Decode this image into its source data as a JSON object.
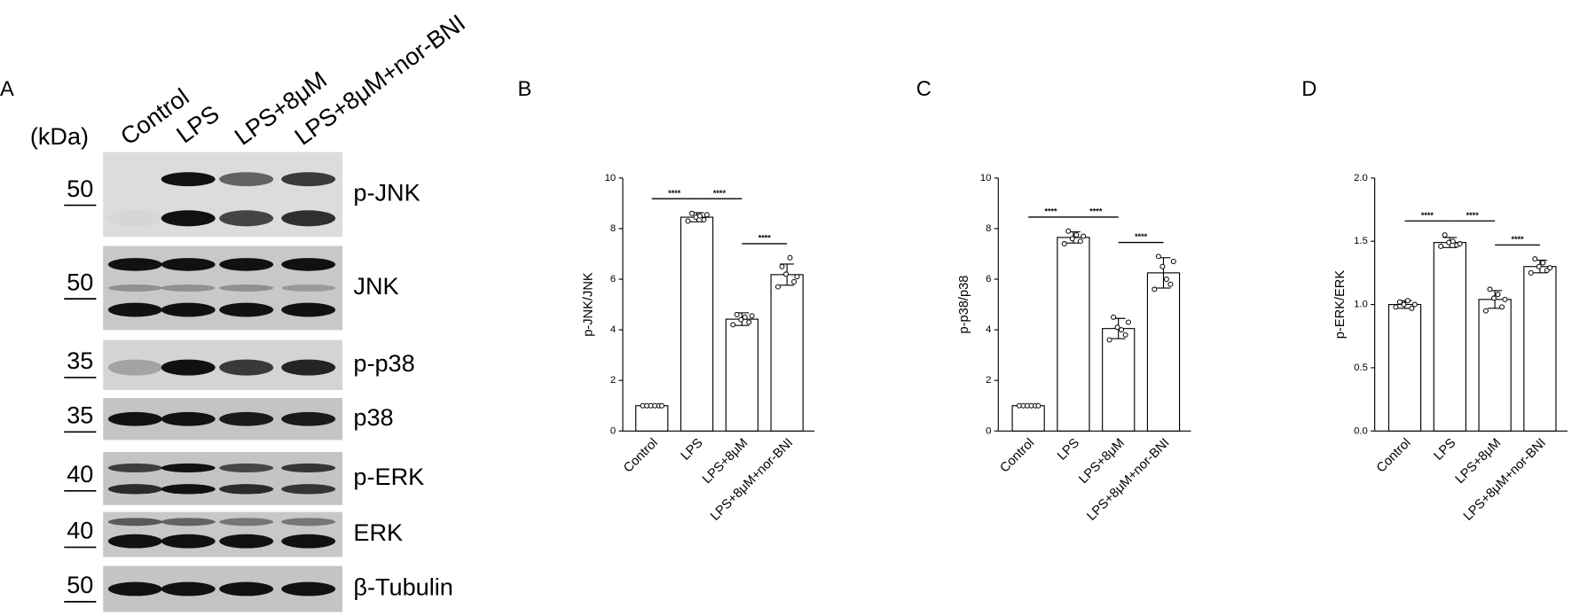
{
  "panel_labels": [
    "A",
    "B",
    "C",
    "D"
  ],
  "blot": {
    "unit_label": "(kDa)",
    "lanes": [
      "Control",
      "LPS",
      "LPS+8μM",
      "LPS+8μM+nor-BNI"
    ],
    "rows": [
      {
        "marker": "50",
        "protein": "p-JNK"
      },
      {
        "marker": "50",
        "protein": "JNK"
      },
      {
        "marker": "35",
        "protein": "p-p38"
      },
      {
        "marker": "35",
        "protein": "p38"
      },
      {
        "marker": "40",
        "protein": "p-ERK"
      },
      {
        "marker": "40",
        "protein": "ERK"
      },
      {
        "marker": "50",
        "protein": "β-Tubulin"
      }
    ]
  },
  "chart_data": [
    {
      "type": "bar",
      "y_label": "p-JNK/JNK",
      "categories": [
        "Control",
        "LPS",
        "LPS+8μM",
        "LPS+8μM+nor-BNI"
      ],
      "values": [
        1.0,
        8.45,
        4.42,
        6.18
      ],
      "errors": [
        0.03,
        0.18,
        0.25,
        0.42
      ],
      "points": [
        [
          1.0,
          1.0,
          1.0,
          1.0,
          1.0,
          1.0
        ],
        [
          8.3,
          8.6,
          8.45,
          8.5,
          8.35,
          8.55
        ],
        [
          4.2,
          4.6,
          4.4,
          4.5,
          4.3,
          4.55
        ],
        [
          5.7,
          6.5,
          6.2,
          6.85,
          5.9,
          6.1
        ]
      ],
      "ylim": [
        0,
        10
      ],
      "yticks": [
        0,
        2,
        4,
        6,
        8,
        10
      ],
      "annotations": [
        {
          "text": "****",
          "between": [
            "Control",
            "LPS"
          ]
        },
        {
          "text": "****",
          "between": [
            "LPS",
            "LPS+8μM"
          ]
        },
        {
          "text": "****",
          "between": [
            "LPS+8μM",
            "LPS+8μM+nor-BNI"
          ]
        }
      ]
    },
    {
      "type": "bar",
      "y_label": "p-p38/p38",
      "categories": [
        "Control",
        "LPS",
        "LPS+8μM",
        "LPS+8μM+nor-BNI"
      ],
      "values": [
        1.0,
        7.65,
        4.05,
        6.25
      ],
      "errors": [
        0.03,
        0.22,
        0.4,
        0.6
      ],
      "points": [
        [
          1.0,
          1.0,
          1.0,
          1.0,
          1.0,
          1.0
        ],
        [
          7.4,
          7.9,
          7.6,
          7.75,
          7.5,
          7.7
        ],
        [
          3.6,
          4.5,
          4.1,
          4.0,
          3.8,
          4.3
        ],
        [
          5.6,
          6.9,
          6.5,
          6.0,
          5.8,
          6.7
        ]
      ],
      "ylim": [
        0,
        10
      ],
      "yticks": [
        0,
        2,
        4,
        6,
        8,
        10
      ],
      "annotations": [
        {
          "text": "****",
          "between": [
            "Control",
            "LPS"
          ]
        },
        {
          "text": "****",
          "between": [
            "LPS",
            "LPS+8μM"
          ]
        },
        {
          "text": "****",
          "between": [
            "LPS+8μM",
            "LPS+8μM+nor-BNI"
          ]
        }
      ]
    },
    {
      "type": "bar",
      "y_label": "p-ERK/ERK",
      "categories": [
        "Control",
        "LPS",
        "LPS+8μM",
        "LPS+8μM+nor-BNI"
      ],
      "values": [
        1.0,
        1.49,
        1.04,
        1.3
      ],
      "errors": [
        0.03,
        0.04,
        0.07,
        0.05
      ],
      "points": [
        [
          0.98,
          1.02,
          1.0,
          1.03,
          0.97,
          1.0
        ],
        [
          1.46,
          1.55,
          1.49,
          1.5,
          1.47,
          1.48
        ],
        [
          0.95,
          1.12,
          1.05,
          1.08,
          0.98,
          1.04
        ],
        [
          1.25,
          1.36,
          1.3,
          1.33,
          1.27,
          1.29
        ]
      ],
      "ylim": [
        0,
        2
      ],
      "yticks": [
        {
          "value": 0,
          "label": "0.0"
        },
        {
          "value": 0.5,
          "label": "0.5"
        },
        {
          "value": 1,
          "label": "1.0"
        },
        {
          "value": 1.5,
          "label": "1.5"
        },
        {
          "value": 2,
          "label": "2.0"
        }
      ],
      "annotations": [
        {
          "text": "****",
          "between": [
            "Control",
            "LPS"
          ]
        },
        {
          "text": "****",
          "between": [
            "LPS",
            "LPS+8μM"
          ]
        },
        {
          "text": "****",
          "between": [
            "LPS+8μM",
            "LPS+8μM+nor-BNI"
          ]
        }
      ]
    }
  ]
}
